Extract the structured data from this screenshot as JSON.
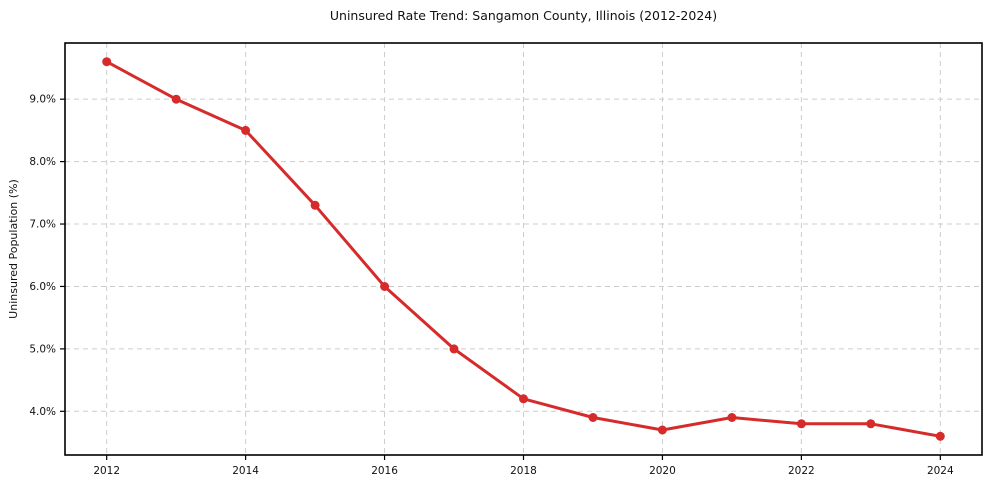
{
  "chart_data": {
    "type": "line",
    "title": "Uninsured Rate Trend: Sangamon County, Illinois (2012-2024)",
    "xlabel": "",
    "ylabel": "Uninsured Population (%)",
    "x": [
      2012,
      2013,
      2014,
      2015,
      2016,
      2017,
      2018,
      2019,
      2020,
      2021,
      2022,
      2023,
      2024
    ],
    "values": [
      9.6,
      9.0,
      8.5,
      7.3,
      6.0,
      5.0,
      4.2,
      3.9,
      3.7,
      3.9,
      3.8,
      3.8,
      3.6
    ],
    "xticks": [
      {
        "value": 2012,
        "label": "2012"
      },
      {
        "value": 2014,
        "label": "2014"
      },
      {
        "value": 2016,
        "label": "2016"
      },
      {
        "value": 2018,
        "label": "2018"
      },
      {
        "value": 2020,
        "label": "2020"
      },
      {
        "value": 2022,
        "label": "2022"
      },
      {
        "value": 2024,
        "label": "2024"
      }
    ],
    "yticks": [
      {
        "value": 4.0,
        "label": "4.0%"
      },
      {
        "value": 5.0,
        "label": "5.0%"
      },
      {
        "value": 6.0,
        "label": "6.0%"
      },
      {
        "value": 7.0,
        "label": "7.0%"
      },
      {
        "value": 8.0,
        "label": "8.0%"
      },
      {
        "value": 9.0,
        "label": "9.0%"
      }
    ],
    "xlim": [
      2011.4,
      2024.6
    ],
    "ylim": [
      3.3,
      9.9
    ],
    "grid": true,
    "legend": "none",
    "colors": {
      "line": "#d62b2b",
      "marker": "#d62b2b",
      "grid": "#cccccc",
      "axis": "#000000",
      "text": "#111111"
    }
  }
}
